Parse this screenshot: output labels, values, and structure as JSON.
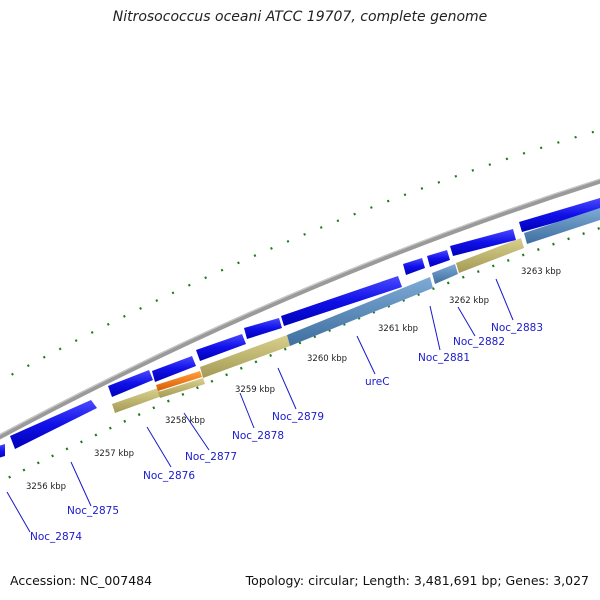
{
  "title": "Nitrosococcus oceani ATCC 19707, complete genome",
  "footer": {
    "accession": "Accession: NC_007484",
    "summary": "Topology: circular; Length: 3,481,691 bp; Genes: 3,027"
  },
  "colors": {
    "backbone": "#8a8a8a",
    "cds_forward": "#1414e6",
    "feature_olive": "#c2b96f",
    "feature_orange": "#f07a10",
    "feature_steelblue": "#5b8ec0",
    "gc_skew_dots": "#1f7a1f",
    "gene_label": "#1a1acc"
  },
  "kbp_labels": [
    "3256 kbp",
    "3257 kbp",
    "3258 kbp",
    "3259 kbp",
    "3260 kbp",
    "3261 kbp",
    "3262 kbp",
    "3263 kbp"
  ],
  "genes": [
    {
      "label": "Noc_2874"
    },
    {
      "label": "Noc_2875"
    },
    {
      "label": "Noc_2876"
    },
    {
      "label": "Noc_2877"
    },
    {
      "label": "Noc_2878"
    },
    {
      "label": "Noc_2879"
    },
    {
      "label": "ureC"
    },
    {
      "label": "Noc_2881"
    },
    {
      "label": "Noc_2882"
    },
    {
      "label": "Noc_2883"
    }
  ]
}
